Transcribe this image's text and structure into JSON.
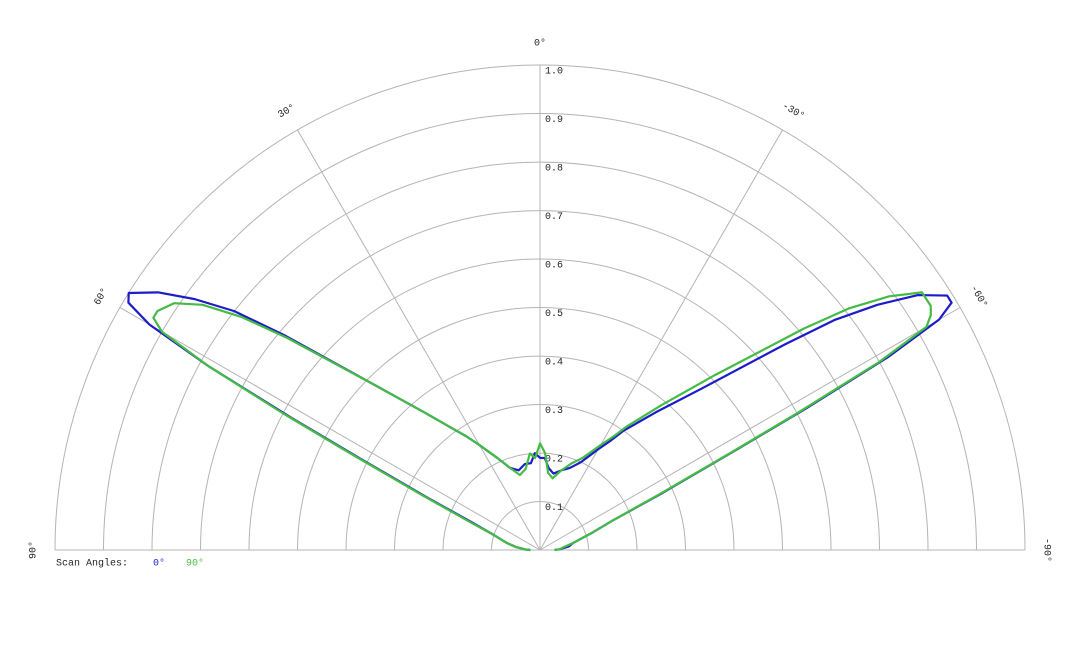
{
  "chart_data": {
    "type": "polar",
    "legend_title": "Scan Angles:",
    "x": [
      -90,
      -88,
      -83,
      -78,
      -72,
      -68,
      -65,
      -63,
      -62,
      -61,
      -60,
      -59,
      -58,
      -56,
      -54,
      -52,
      -50,
      -45,
      -40,
      -35,
      -33,
      -30,
      -25,
      -20,
      -15,
      -10,
      -6,
      -3,
      0,
      3,
      6,
      10,
      15,
      20,
      25,
      30,
      33,
      35,
      40,
      45,
      50,
      52,
      54,
      56,
      58,
      59,
      60,
      61,
      62,
      63,
      65,
      68,
      72,
      78,
      83,
      88,
      90
    ],
    "series": [
      {
        "name": "0°",
        "color": "#1c1cc8",
        "values": [
          0.03,
          0.04,
          0.06,
          0.07,
          0.11,
          0.16,
          0.28,
          0.45,
          0.62,
          0.82,
          0.95,
          0.99,
          0.99,
          0.94,
          0.86,
          0.77,
          0.66,
          0.47,
          0.37,
          0.3,
          0.27,
          0.24,
          0.2,
          0.18,
          0.17,
          0.16,
          0.17,
          0.19,
          0.19,
          0.2,
          0.18,
          0.18,
          0.17,
          0.18,
          0.21,
          0.25,
          0.28,
          0.3,
          0.37,
          0.48,
          0.69,
          0.8,
          0.88,
          0.95,
          1.0,
          0.99,
          0.93,
          0.78,
          0.58,
          0.42,
          0.26,
          0.15,
          0.1,
          0.07,
          0.05,
          0.03,
          0.02
        ]
      },
      {
        "name": "90°",
        "color": "#44bb44",
        "values": [
          0.03,
          0.04,
          0.05,
          0.07,
          0.11,
          0.16,
          0.27,
          0.44,
          0.6,
          0.8,
          0.92,
          0.94,
          0.95,
          0.95,
          0.89,
          0.81,
          0.71,
          0.51,
          0.39,
          0.31,
          0.28,
          0.25,
          0.21,
          0.19,
          0.17,
          0.15,
          0.16,
          0.2,
          0.22,
          0.19,
          0.2,
          0.17,
          0.16,
          0.18,
          0.21,
          0.25,
          0.28,
          0.3,
          0.37,
          0.48,
          0.68,
          0.78,
          0.86,
          0.91,
          0.93,
          0.93,
          0.9,
          0.78,
          0.6,
          0.44,
          0.27,
          0.16,
          0.1,
          0.07,
          0.05,
          0.03,
          0.02
        ]
      }
    ],
    "xlim": [
      -90,
      90
    ],
    "xticks": [
      {
        "value": 90,
        "label": "90°"
      },
      {
        "value": 60,
        "label": "60°"
      },
      {
        "value": 30,
        "label": "30°"
      },
      {
        "value": 0,
        "label": "0°"
      },
      {
        "value": -30,
        "label": "-30°"
      },
      {
        "value": -60,
        "label": "-60°"
      },
      {
        "value": -90,
        "label": "-90°"
      }
    ],
    "ylim": [
      0,
      1
    ],
    "yticks": [
      0.1,
      0.2,
      0.3,
      0.4,
      0.5,
      0.6,
      0.7,
      0.8,
      0.9,
      {
        "value": 1,
        "label": "1.0"
      }
    ],
    "grid": true
  }
}
